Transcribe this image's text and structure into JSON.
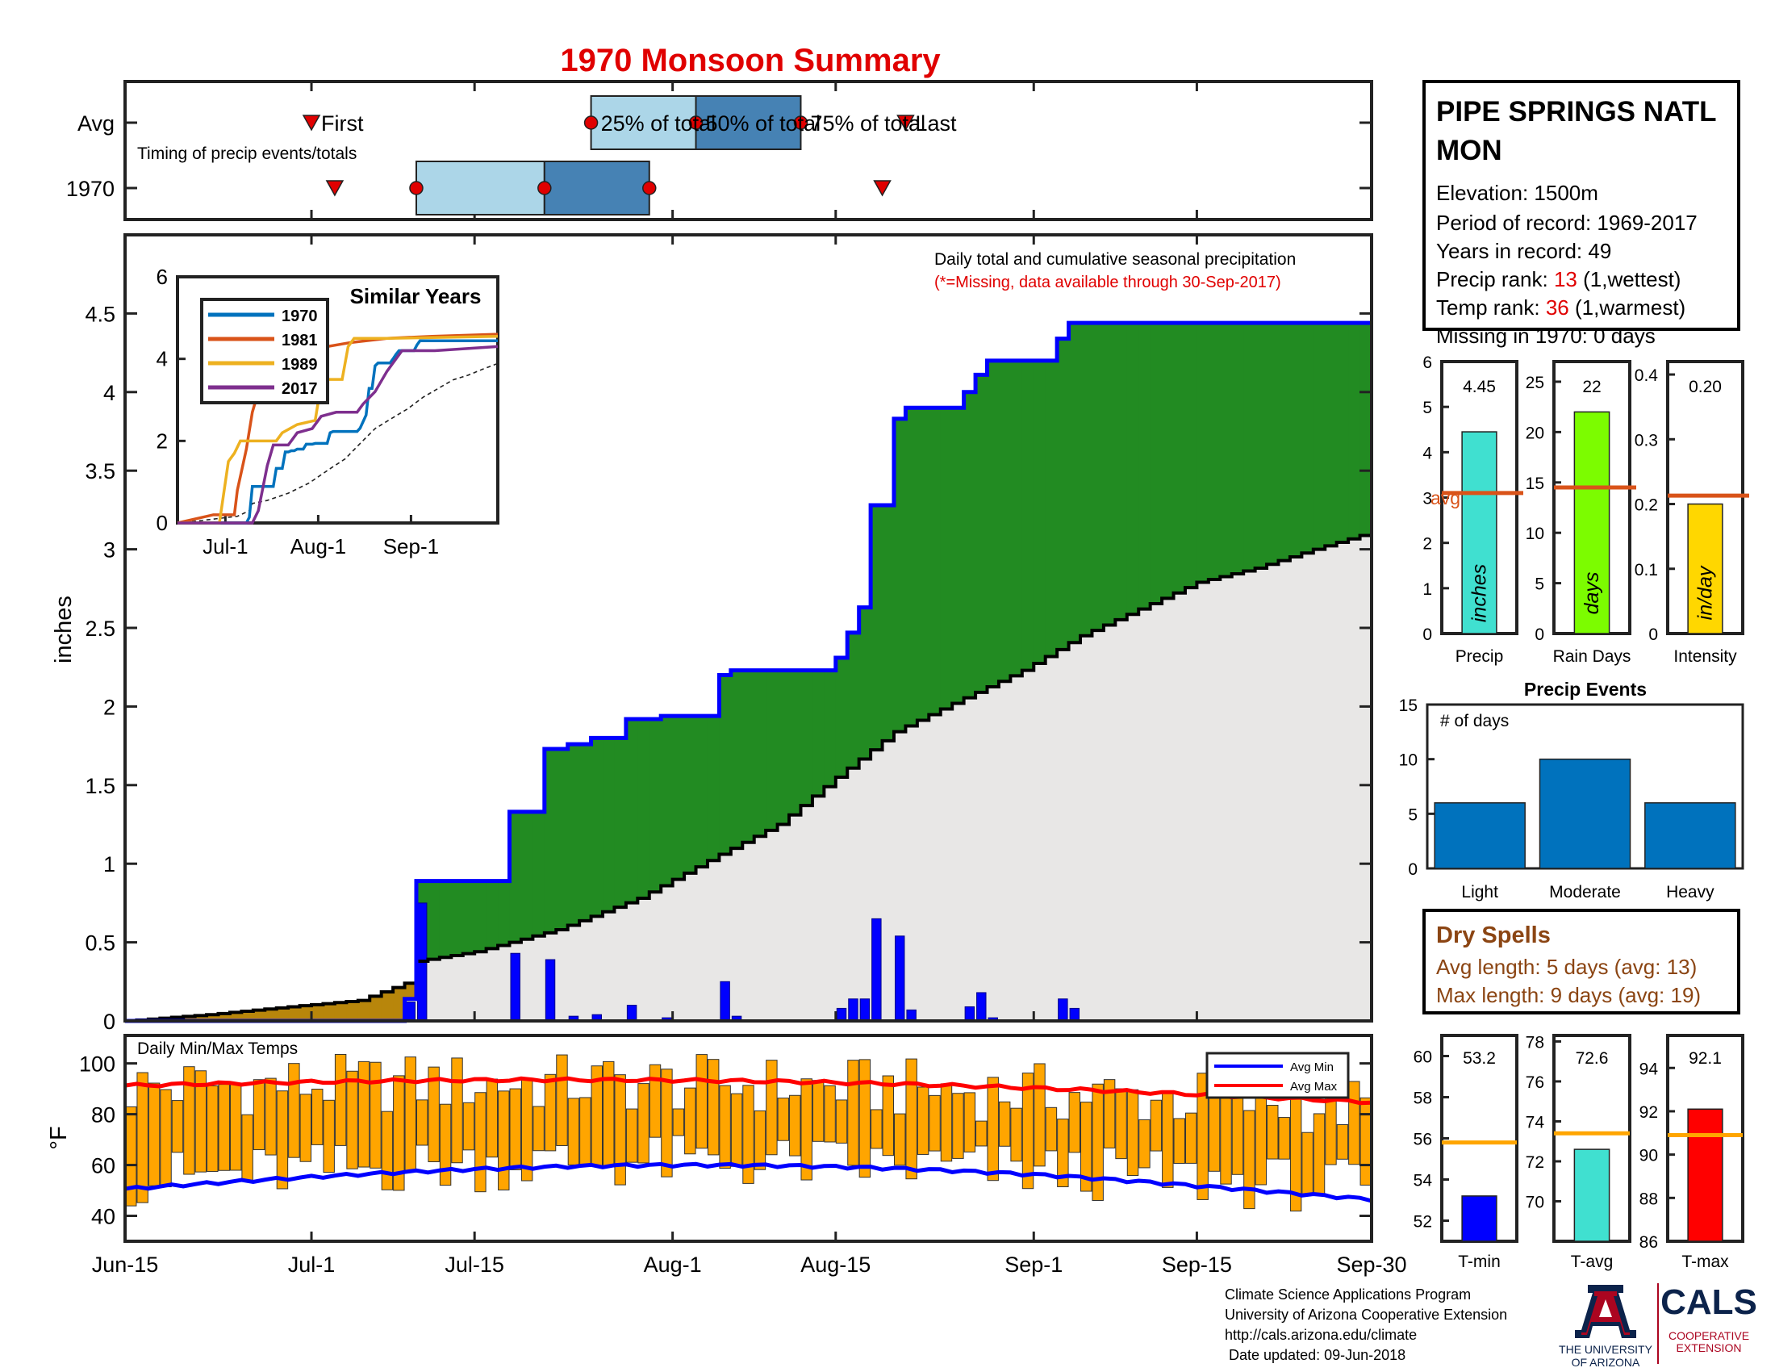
{
  "title": "1970 Monsoon Summary",
  "timing": {
    "row_labels": [
      "Avg",
      "1970"
    ],
    "subtitle": "Timing of precip events/totals",
    "labels": {
      "first": "First",
      "p25": "25% of total",
      "p50": "50% of total",
      "p75": "75% of total",
      "last": "Last"
    },
    "avg": {
      "first": "Jul-1",
      "p25": "Jul-25",
      "p50": "Aug-3",
      "p75": "Aug-12",
      "last": "Aug-21"
    },
    "year": {
      "first": "Jul-3",
      "p25": "Jul-10",
      "p50": "Jul-21",
      "p75": "Jul-30",
      "last": "Aug-19"
    }
  },
  "station": {
    "name": "PIPE SPRINGS NATL MON",
    "elevation": "Elevation: 1500m",
    "period": "Period of record: 1969-2017",
    "years": "Years in record: 49",
    "precip_rank_label": "Precip rank: ",
    "precip_rank_value": "13",
    "precip_rank_suffix": " (1,wettest)",
    "temp_rank_label": "Temp rank: ",
    "temp_rank_value": "36",
    "temp_rank_suffix": " (1,warmest)",
    "missing": "Missing in 1970: 0 days"
  },
  "main_panel": {
    "ylabel": "inches",
    "note": "Daily total and cumulative seasonal precipitation",
    "missing_note": "(*=Missing, data available through 30-Sep-2017)",
    "ylim": [
      0,
      5
    ],
    "yticks": [
      "0",
      "0.5",
      "1",
      "1.5",
      "2",
      "2.5",
      "3",
      "3.5",
      "4",
      "4.5"
    ]
  },
  "inset": {
    "title": "Similar Years",
    "yticks": [
      "0",
      "2",
      "4",
      "6"
    ],
    "xticks": [
      "Jul-1",
      "Aug-1",
      "Sep-1"
    ],
    "legend": [
      "1970",
      "1981",
      "1989",
      "2017"
    ],
    "colors": [
      "#0072bd",
      "#d95319",
      "#edb120",
      "#7e2f8e"
    ]
  },
  "bars_small": [
    {
      "name": "precip",
      "label": "Precip",
      "value": "4.45",
      "val": 4.45,
      "avg": 3.1,
      "ymax": 6,
      "yticks": [
        "0",
        "1",
        "2",
        "3",
        "4",
        "5",
        "6"
      ],
      "unit": "inches",
      "color": "#40e0d0",
      "avg_label": "avg"
    },
    {
      "name": "rain-days",
      "label": "Rain Days",
      "value": "22",
      "val": 22,
      "avg": 14.5,
      "ymax": 27,
      "yticks": [
        "0",
        "5",
        "10",
        "15",
        "20",
        "25"
      ],
      "unit": "days",
      "color": "#7cfc00"
    },
    {
      "name": "intensity",
      "label": "Intensity",
      "value": "0.20",
      "val": 0.2,
      "avg": 0.213,
      "ymax": 0.42,
      "yticks": [
        "0",
        "0.1",
        "0.2",
        "0.3",
        "0.4"
      ],
      "unit": "in/day",
      "color": "#ffd700"
    }
  ],
  "events": {
    "title": "Precip Events",
    "ylabel": "# of days",
    "categories": [
      "Light",
      "Moderate",
      "Heavy"
    ],
    "values": [
      6,
      10,
      6
    ],
    "yticks": [
      "0",
      "5",
      "10",
      "15"
    ]
  },
  "dry_spells": {
    "title": "Dry Spells",
    "avg": "Avg length: 5 days (avg: 13)",
    "max": "Max length: 9 days (avg: 19)"
  },
  "temps": {
    "title": "Daily Min/Max Temps",
    "ylabel": "°F",
    "yticks": [
      "40",
      "60",
      "80",
      "100"
    ],
    "legend": [
      "Avg Min",
      "Avg Max"
    ],
    "xticks": [
      "Jun-15",
      "Jul-1",
      "Jul-15",
      "Aug-1",
      "Aug-15",
      "Sep-1",
      "Sep-15",
      "Sep-30"
    ]
  },
  "temp_small": [
    {
      "name": "t-min",
      "label": "T-min",
      "value": "53.2",
      "val": 53.2,
      "avg": 55.8,
      "ymin": 51,
      "ymax": 61,
      "yticks": [
        "52",
        "54",
        "56",
        "58",
        "60"
      ],
      "color": "#0000ff"
    },
    {
      "name": "t-avg",
      "label": "T-avg",
      "value": "72.6",
      "val": 72.6,
      "avg": 73.4,
      "ymin": 68,
      "ymax": 78.3,
      "yticks": [
        "70",
        "72",
        "74",
        "76",
        "78"
      ],
      "color": "#40e0d0"
    },
    {
      "name": "t-max",
      "label": "T-max",
      "value": "92.1",
      "val": 92.1,
      "avg": 90.9,
      "ymin": 86,
      "ymax": 95.5,
      "yticks": [
        "86",
        "88",
        "90",
        "92",
        "94"
      ],
      "color": "#ff0000"
    }
  ],
  "footer": {
    "lines": [
      "Climate Science Applications Program",
      "University of Arizona Cooperative Extension",
      "http://cals.arizona.edu/climate",
      " Date updated: 09-Jun-2018"
    ],
    "ua_line1": "THE UNIVERSITY",
    "ua_line2": "OF ARIZONA",
    "cals": "CALS",
    "coop1": "COOPERATIVE",
    "coop2": "EXTENSION"
  },
  "chart_data": {
    "type": "area",
    "x_start": "Jun-15",
    "x_end": "Sep-30",
    "cumulative_1970_steps": [
      [
        "Jun-15",
        0
      ],
      [
        "Jul-9",
        0.14
      ],
      [
        "Jul-10",
        0.89
      ],
      [
        "Jul-18",
        1.33
      ],
      [
        "Jul-21",
        1.73
      ],
      [
        "Jul-23",
        1.76
      ],
      [
        "Jul-25",
        1.8
      ],
      [
        "Jul-28",
        1.92
      ],
      [
        "Jul-31",
        1.94
      ],
      [
        "Aug-5",
        2.2
      ],
      [
        "Aug-6",
        2.23
      ],
      [
        "Aug-15",
        2.31
      ],
      [
        "Aug-16",
        2.47
      ],
      [
        "Aug-17",
        2.63
      ],
      [
        "Aug-18",
        3.28
      ],
      [
        "Aug-20",
        3.83
      ],
      [
        "Aug-21",
        3.9
      ],
      [
        "Aug-26",
        4.0
      ],
      [
        "Aug-27",
        4.11
      ],
      [
        "Aug-28",
        4.2
      ],
      [
        "Sep-3",
        4.34
      ],
      [
        "Sep-4",
        4.44
      ],
      [
        "Sep-30",
        4.44
      ]
    ],
    "cumulative_avg": [
      [
        "Jun-15",
        0
      ],
      [
        "Jun-22",
        0.04
      ],
      [
        "Jun-29",
        0.09
      ],
      [
        "Jul-5",
        0.13
      ],
      [
        "Jul-9",
        0.24
      ],
      [
        "Jul-10",
        0.38
      ],
      [
        "Jul-15",
        0.44
      ],
      [
        "Jul-22",
        0.58
      ],
      [
        "Jul-29",
        0.78
      ],
      [
        "Aug-5",
        1.06
      ],
      [
        "Aug-10",
        1.25
      ],
      [
        "Aug-15",
        1.55
      ],
      [
        "Aug-20",
        1.84
      ],
      [
        "Aug-25",
        2.02
      ],
      [
        "Aug-31",
        2.23
      ],
      [
        "Sep-5",
        2.45
      ],
      [
        "Sep-10",
        2.62
      ],
      [
        "Sep-15",
        2.79
      ],
      [
        "Sep-20",
        2.88
      ],
      [
        "Sep-25",
        3.0
      ],
      [
        "Sep-30",
        3.11
      ]
    ],
    "daily_precip": [
      [
        "Jul-9",
        0.12
      ],
      [
        "Jul-10",
        0.75
      ],
      [
        "Jul-18",
        0.43
      ],
      [
        "Jul-21",
        0.39
      ],
      [
        "Jul-23",
        0.03
      ],
      [
        "Jul-25",
        0.04
      ],
      [
        "Jul-28",
        0.1
      ],
      [
        "Jul-31",
        0.02
      ],
      [
        "Aug-5",
        0.25
      ],
      [
        "Aug-6",
        0.03
      ],
      [
        "Aug-15",
        0.08
      ],
      [
        "Aug-16",
        0.14
      ],
      [
        "Aug-17",
        0.14
      ],
      [
        "Aug-18",
        0.65
      ],
      [
        "Aug-20",
        0.54
      ],
      [
        "Aug-21",
        0.07
      ],
      [
        "Aug-26",
        0.09
      ],
      [
        "Aug-27",
        0.18
      ],
      [
        "Aug-28",
        0.02
      ],
      [
        "Sep-3",
        0.14
      ],
      [
        "Sep-4",
        0.08
      ]
    ],
    "ylim": [
      0,
      5
    ],
    "series": [
      {
        "name": "1970",
        "color": "#0000ff"
      },
      {
        "name": "avg",
        "color": "#000000"
      }
    ]
  }
}
